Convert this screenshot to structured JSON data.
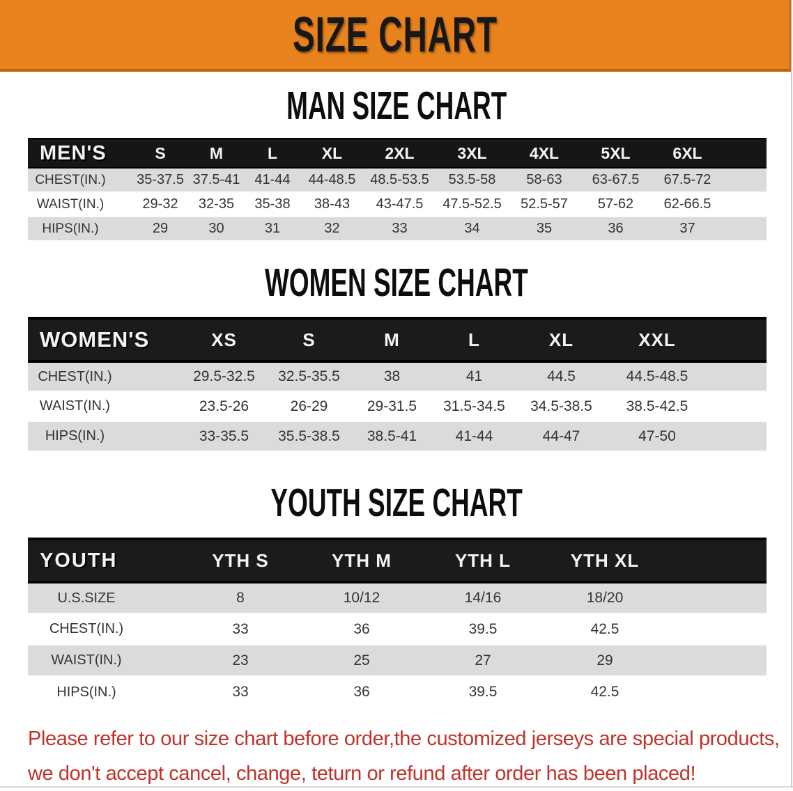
{
  "banner": {
    "title": "SIZE CHART",
    "bg_color": "#e8821c",
    "text_color": "#181818"
  },
  "sections": [
    {
      "id": "men",
      "heading": "MAN SIZE CHART",
      "group_label": "MEN'S",
      "columns": [
        "S",
        "M",
        "L",
        "XL",
        "2XL",
        "3XL",
        "4XL",
        "5XL",
        "6XL"
      ],
      "rows": [
        {
          "label": "CHEST(IN.)",
          "values": [
            "35-37.5",
            "37.5-41",
            "41-44",
            "44-48.5",
            "48.5-53.5",
            "53.5-58",
            "58-63",
            "63-67.5",
            "67.5-72"
          ]
        },
        {
          "label": "WAIST(IN.)",
          "values": [
            "29-32",
            "32-35",
            "35-38",
            "38-43",
            "43-47.5",
            "47.5-52.5",
            "52.5-57",
            "57-62",
            "62-66.5"
          ]
        },
        {
          "label": "HIPS(IN.)",
          "values": [
            "29",
            "30",
            "31",
            "32",
            "33",
            "34",
            "35",
            "36",
            "37"
          ]
        }
      ]
    },
    {
      "id": "women",
      "heading": "WOMEN SIZE CHART",
      "group_label": "WOMEN'S",
      "columns": [
        "XS",
        "S",
        "M",
        "L",
        "XL",
        "XXL"
      ],
      "rows": [
        {
          "label": "CHEST(IN.)",
          "values": [
            "29.5-32.5",
            "32.5-35.5",
            "38",
            "41",
            "44.5",
            "44.5-48.5"
          ]
        },
        {
          "label": "WAIST(IN.)",
          "values": [
            "23.5-26",
            "26-29",
            "29-31.5",
            "31.5-34.5",
            "34.5-38.5",
            "38.5-42.5"
          ]
        },
        {
          "label": "HIPS(IN.)",
          "values": [
            "33-35.5",
            "35.5-38.5",
            "38.5-41",
            "41-44",
            "44-47",
            "47-50"
          ]
        }
      ]
    },
    {
      "id": "youth",
      "heading": "YOUTH SIZE CHART",
      "group_label": "YOUTH",
      "columns": [
        "YTH S",
        "YTH M",
        "YTH L",
        "YTH XL"
      ],
      "rows": [
        {
          "label": "U.S.SIZE",
          "values": [
            "8",
            "10/12",
            "14/16",
            "18/20"
          ]
        },
        {
          "label": "CHEST(IN.)",
          "values": [
            "33",
            "36",
            "39.5",
            "42.5"
          ]
        },
        {
          "label": "WAIST(IN.)",
          "values": [
            "23",
            "25",
            "27",
            "29"
          ]
        },
        {
          "label": "HIPS(IN.)",
          "values": [
            "33",
            "36",
            "39.5",
            "42.5"
          ]
        }
      ]
    }
  ],
  "disclaimer": {
    "line1": "Please refer to our size chart before order,the customized jerseys are special products,",
    "line2": "we don't accept cancel, change, teturn or refund after order has been placed!",
    "color": "#c1322a"
  }
}
